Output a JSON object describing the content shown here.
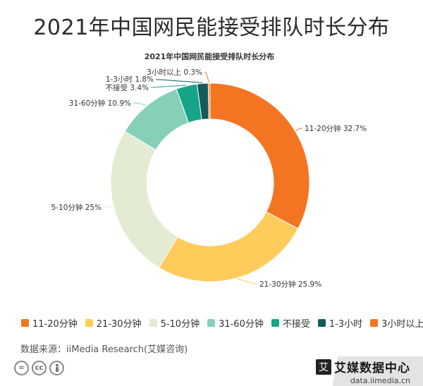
{
  "page_title": "2021年中国网民能接受排队时长分布",
  "source_text": "数据来源：iiMedia Research(艾媒咨询)",
  "brand": {
    "logo_text": "艾",
    "name": "艾媒数据中心",
    "url": "data.iimedia.cn"
  },
  "license_icons": [
    "=",
    "cc",
    "person"
  ],
  "chart_data": {
    "type": "pie",
    "variant": "donut",
    "title": "2021年中国网民能接受排队时长分布",
    "legend_position": "bottom",
    "categories": [
      "11-20分钟",
      "21-30分钟",
      "5-10分钟",
      "31-60分钟",
      "不接受",
      "1-3小时",
      "3小时以上"
    ],
    "values": [
      32.7,
      25.9,
      25,
      10.9,
      3.4,
      1.8,
      0.3
    ],
    "unit": "%",
    "colors": [
      "#F47521",
      "#FFCC5C",
      "#E3EBD2",
      "#86D0BA",
      "#17A58A",
      "#145C5C",
      "#F47521"
    ],
    "data_labels": [
      "11-20分钟 32.7%",
      "21-30分钟 25.9%",
      "5-10分钟 25%",
      "31-60分钟 10.9%",
      "不接受 3.4%",
      "1-3小时 1.8%",
      "3小时以上 0.3%"
    ]
  }
}
